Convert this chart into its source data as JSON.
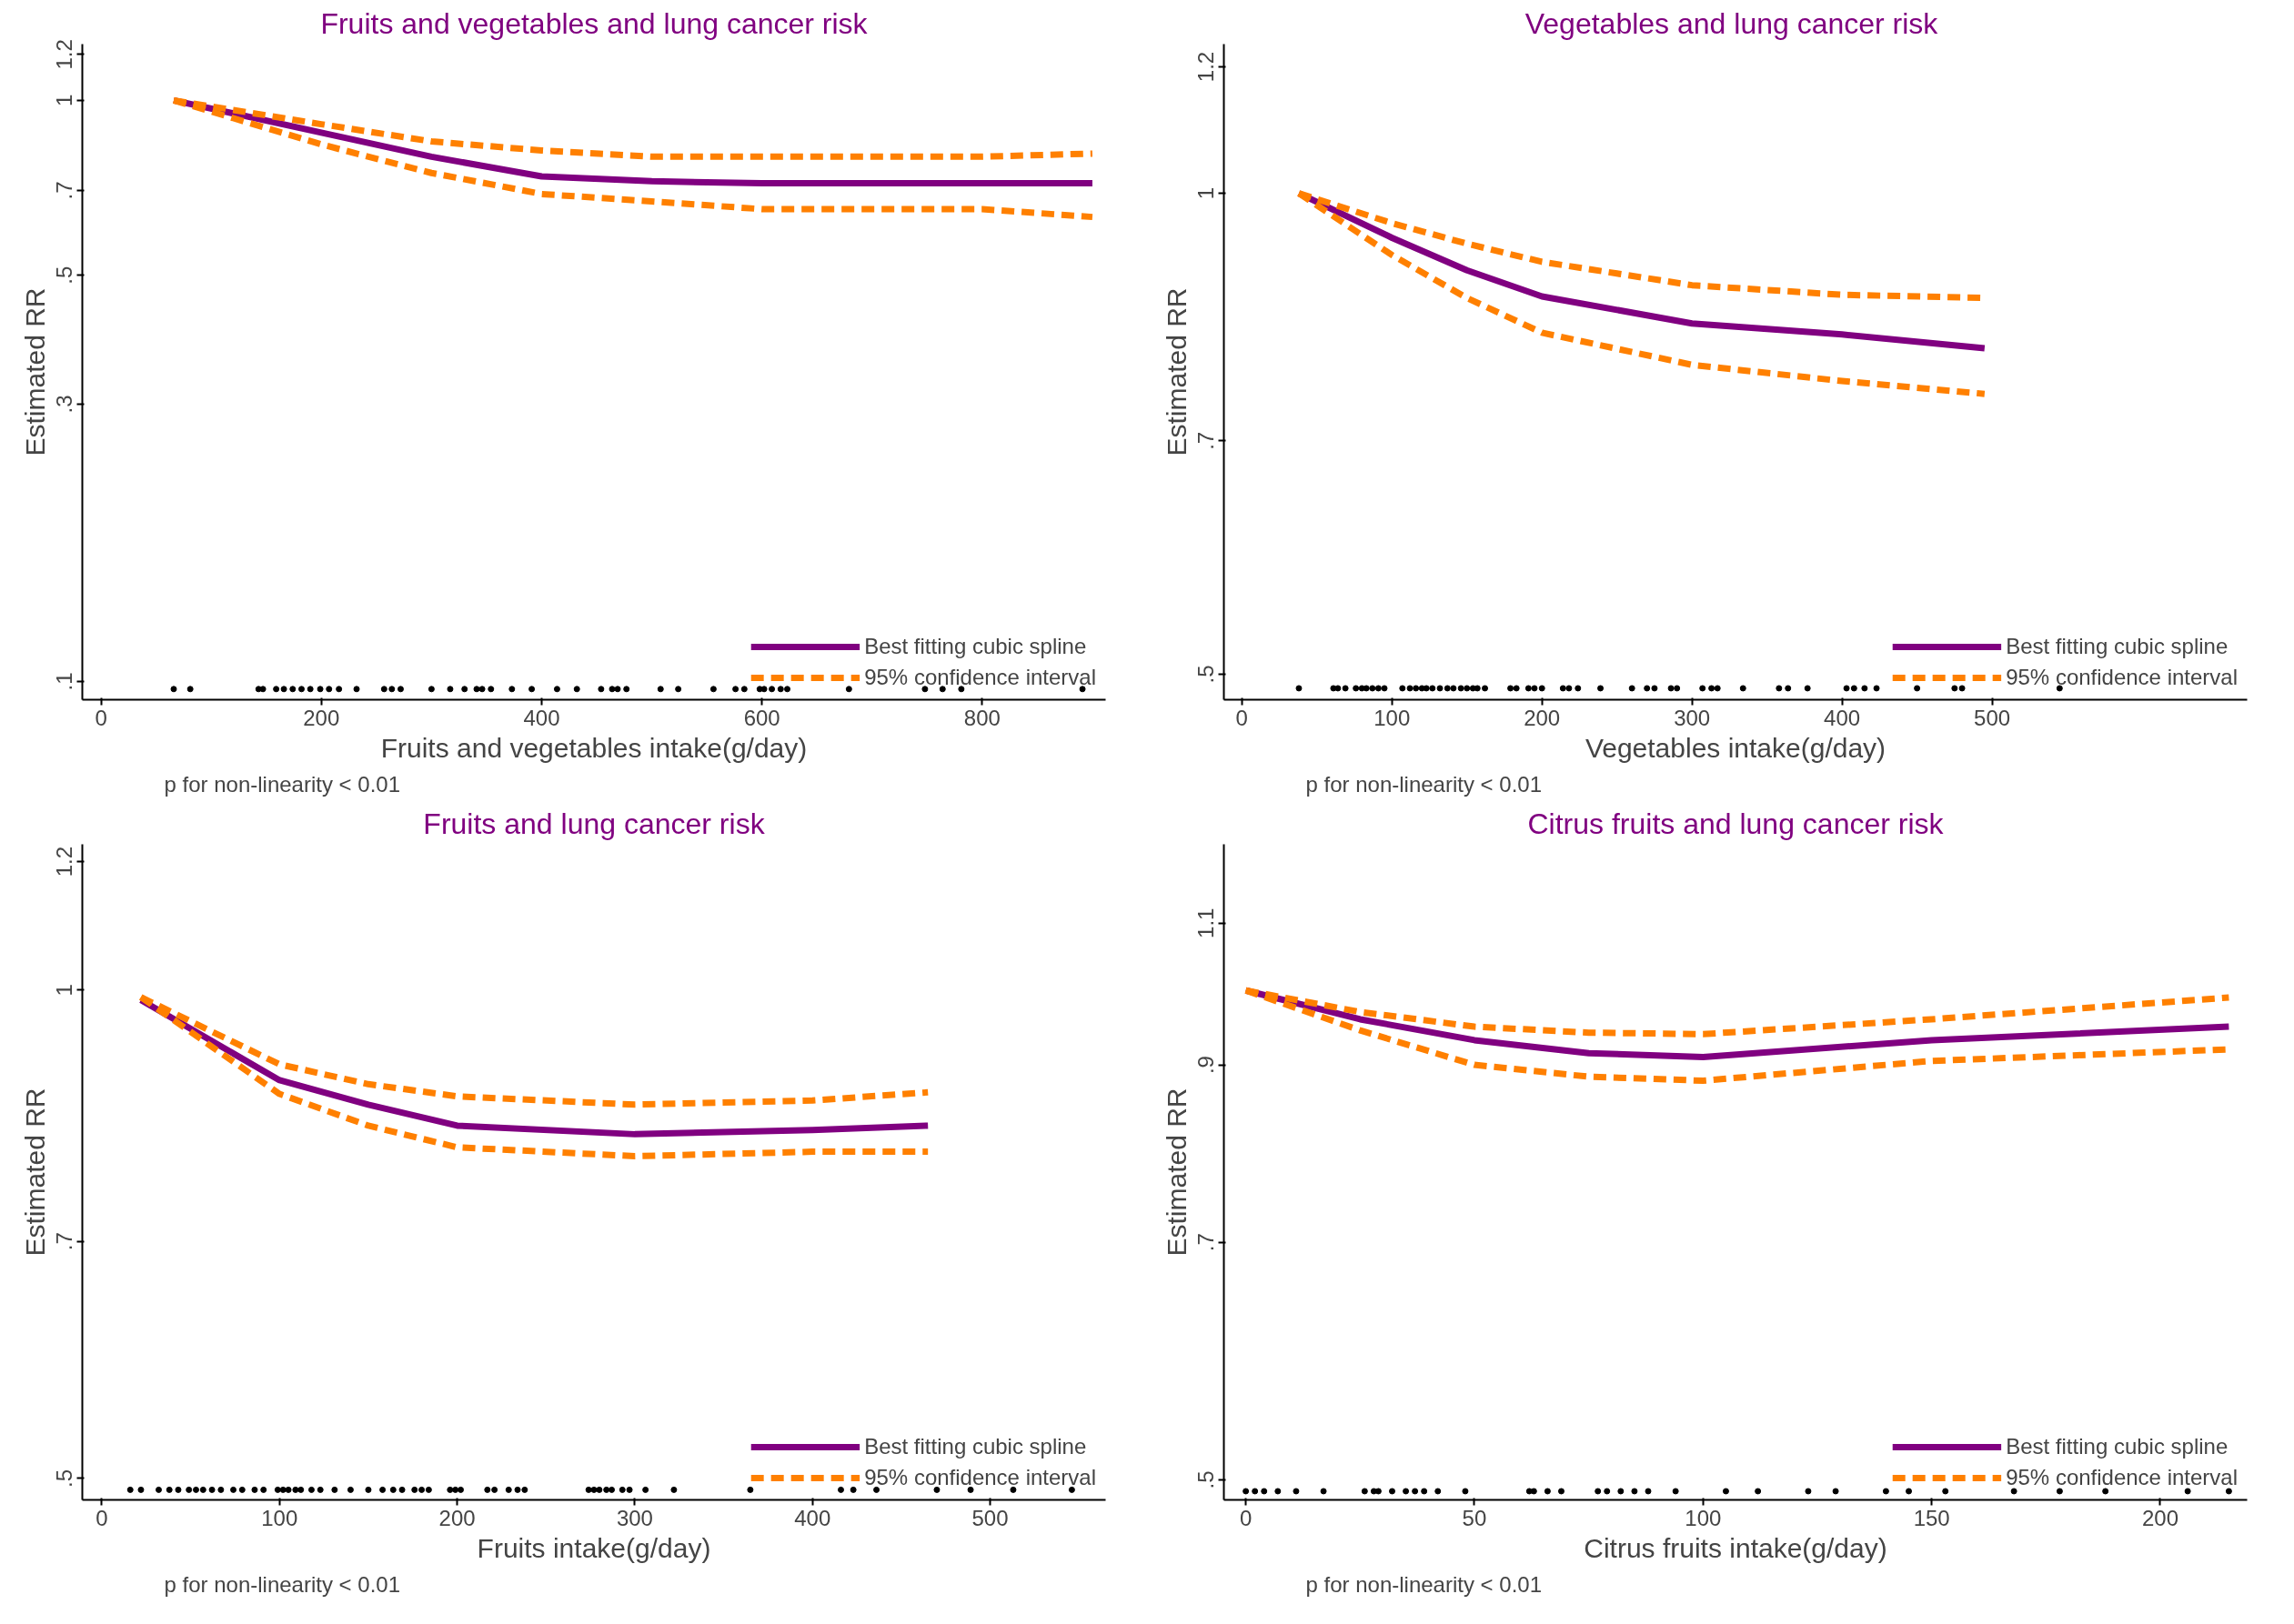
{
  "chart_data": [
    {
      "type": "line",
      "title": "Fruits and vegetables and lung cancer risk",
      "xlabel": "Fruits and vegetables intake(g/day)",
      "ylabel": "Estimated RR",
      "log": "y",
      "legend": "bottom right",
      "line_style": "solid",
      "xlim": [
        -17,
        912
      ],
      "ylim": [
        0.093,
        1.25
      ],
      "xticks": [
        0,
        200,
        400,
        600,
        800
      ],
      "yticks": [
        {
          "value": 0.1,
          "label": ".1"
        },
        {
          "value": 0.3,
          "label": ".3"
        },
        {
          "value": 0.5,
          "label": ".5"
        },
        {
          "value": 0.7,
          "label": ".7"
        },
        1,
        {
          "value": 1.2,
          "label": "1.2"
        }
      ],
      "annotations": [
        "p for non-linearity < 0.01"
      ],
      "series": [
        {
          "name": "Best fitting cubic spline",
          "color": "#800080",
          "x": [
            66,
            200,
            300,
            400,
            500,
            600,
            800,
            900
          ],
          "values": [
            1.0,
            0.88,
            0.8,
            0.74,
            0.726,
            0.72,
            0.72,
            0.72
          ]
        },
        {
          "name": "95% confidence interval",
          "color": "#ff8000",
          "line_style": "dashed",
          "x": [
            66,
            200,
            300,
            400,
            500,
            600,
            800,
            900
          ],
          "values": [
            1.0,
            0.91,
            0.85,
            0.82,
            0.8,
            0.8,
            0.8,
            0.81
          ]
        },
        {
          "color": "#ff8000",
          "line_style": "dashed",
          "x": [
            66,
            200,
            300,
            400,
            500,
            600,
            800,
            900
          ],
          "values": [
            1.0,
            0.84,
            0.75,
            0.69,
            0.67,
            0.65,
            0.65,
            0.63
          ]
        },
        {
          "type": "scatter",
          "color": "#000000",
          "x": [
            66,
            81,
            143,
            147,
            159,
            166,
            174,
            182,
            190,
            199,
            207,
            216,
            232,
            257,
            264,
            272,
            300,
            317,
            330,
            341,
            346,
            354,
            373,
            391,
            414,
            432,
            454,
            464,
            469,
            477,
            508,
            524,
            556,
            576,
            584,
            598,
            602,
            609,
            617,
            623,
            679,
            748,
            764,
            781,
            891
          ],
          "values": [
            0.097,
            0.097,
            0.097,
            0.097,
            0.097,
            0.097,
            0.097,
            0.097,
            0.097,
            0.097,
            0.097,
            0.097,
            0.097,
            0.097,
            0.097,
            0.097,
            0.097,
            0.097,
            0.097,
            0.097,
            0.097,
            0.097,
            0.097,
            0.097,
            0.097,
            0.097,
            0.097,
            0.097,
            0.097,
            0.097,
            0.097,
            0.097,
            0.097,
            0.097,
            0.097,
            0.097,
            0.097,
            0.097,
            0.097,
            0.097,
            0.097,
            0.097,
            0.097,
            0.097,
            0.097
          ]
        }
      ]
    },
    {
      "type": "line",
      "title": "Vegetables and  lung cancer risk",
      "xlabel": "Vegetables intake(g/day)",
      "ylabel": "Estimated RR",
      "log": "y",
      "legend": "bottom right",
      "line_style": "solid",
      "xlim": [
        -12,
        670
      ],
      "ylim": [
        0.482,
        1.24
      ],
      "xticks": [
        0,
        100,
        200,
        300,
        400,
        500
      ],
      "yticks": [
        {
          "value": 0.5,
          "label": ".5"
        },
        {
          "value": 0.7,
          "label": ".7"
        },
        1,
        {
          "value": 1.2,
          "label": "1.2"
        }
      ],
      "annotations": [
        "p for non-linearity < 0.01"
      ],
      "series": [
        {
          "name": "Best fitting cubic spline",
          "color": "#800080",
          "x": [
            38,
            100,
            150,
            200,
            300,
            400,
            495
          ],
          "values": [
            1.0,
            0.938,
            0.895,
            0.862,
            0.829,
            0.816,
            0.8
          ]
        },
        {
          "name": "95% confidence interval",
          "color": "#ff8000",
          "line_style": "dashed",
          "x": [
            38,
            100,
            150,
            200,
            300,
            400,
            495
          ],
          "values": [
            1.0,
            0.958,
            0.93,
            0.906,
            0.876,
            0.864,
            0.86
          ]
        },
        {
          "color": "#ff8000",
          "line_style": "dashed",
          "x": [
            38,
            100,
            150,
            200,
            300,
            400,
            495
          ],
          "values": [
            1.0,
            0.915,
            0.86,
            0.818,
            0.781,
            0.763,
            0.749
          ]
        },
        {
          "type": "scatter",
          "color": "#000000",
          "x": [
            38,
            61,
            64,
            69,
            76,
            80,
            83,
            87,
            91,
            95,
            107,
            112,
            116,
            120,
            123,
            127,
            132,
            137,
            141,
            146,
            150,
            154,
            157,
            162,
            179,
            183,
            191,
            195,
            200,
            214,
            218,
            224,
            239,
            260,
            270,
            275,
            286,
            290,
            307,
            313,
            317,
            334,
            358,
            364,
            377,
            403,
            408,
            415,
            423,
            450,
            475,
            480,
            545
          ],
          "values": [
            0.49,
            0.49,
            0.49,
            0.49,
            0.49,
            0.49,
            0.49,
            0.49,
            0.49,
            0.49,
            0.49,
            0.49,
            0.49,
            0.49,
            0.49,
            0.49,
            0.49,
            0.49,
            0.49,
            0.49,
            0.49,
            0.49,
            0.49,
            0.49,
            0.49,
            0.49,
            0.49,
            0.49,
            0.49,
            0.49,
            0.49,
            0.49,
            0.49,
            0.49,
            0.49,
            0.49,
            0.49,
            0.49,
            0.49,
            0.49,
            0.49,
            0.49,
            0.49,
            0.49,
            0.49,
            0.49,
            0.49,
            0.49,
            0.49,
            0.49,
            0.49,
            0.49,
            0.49
          ]
        }
      ]
    },
    {
      "type": "line",
      "title": "Fruits and lung cancer risk",
      "xlabel": "Fruits intake(g/day)",
      "ylabel": "Estimated RR",
      "log": "y",
      "legend": "bottom right",
      "line_style": "solid",
      "xlim": [
        -11,
        565
      ],
      "ylim": [
        0.485,
        1.23
      ],
      "xticks": [
        0,
        100,
        200,
        300,
        400,
        500
      ],
      "yticks": [
        {
          "value": 0.5,
          "label": ".5"
        },
        {
          "value": 0.7,
          "label": ".7"
        },
        1,
        {
          "value": 1.2,
          "label": "1.2"
        }
      ],
      "annotations": [
        "p for non-linearity < 0.01"
      ],
      "series": [
        {
          "name": "Best fitting cubic spline",
          "color": "#800080",
          "x": [
            22,
            100,
            150,
            200,
            300,
            400,
            465
          ],
          "values": [
            0.986,
            0.88,
            0.85,
            0.825,
            0.815,
            0.82,
            0.825
          ]
        },
        {
          "name": "95% confidence interval",
          "color": "#ff8000",
          "line_style": "dashed",
          "x": [
            22,
            100,
            150,
            200,
            300,
            400,
            465
          ],
          "values": [
            0.99,
            0.9,
            0.875,
            0.86,
            0.85,
            0.855,
            0.865
          ]
        },
        {
          "color": "#ff8000",
          "line_style": "dashed",
          "x": [
            22,
            100,
            150,
            200,
            300,
            400,
            465
          ],
          "values": [
            0.99,
            0.863,
            0.825,
            0.8,
            0.79,
            0.795,
            0.795
          ]
        },
        {
          "type": "scatter",
          "color": "#000000",
          "x": [
            16,
            22,
            32,
            38,
            43,
            49,
            53,
            57,
            62,
            67,
            74,
            79,
            86,
            91,
            99,
            102,
            105,
            109,
            112,
            118,
            123,
            131,
            140,
            150,
            158,
            164,
            169,
            176,
            180,
            184,
            196,
            199,
            202,
            217,
            221,
            229,
            234,
            238,
            274,
            277,
            280,
            284,
            287,
            293,
            297,
            306,
            322,
            365,
            416,
            423,
            436,
            470,
            489,
            513,
            546
          ],
          "values": [
            0.492,
            0.492,
            0.492,
            0.492,
            0.492,
            0.492,
            0.492,
            0.492,
            0.492,
            0.492,
            0.492,
            0.492,
            0.492,
            0.492,
            0.492,
            0.492,
            0.492,
            0.492,
            0.492,
            0.492,
            0.492,
            0.492,
            0.492,
            0.492,
            0.492,
            0.492,
            0.492,
            0.492,
            0.492,
            0.492,
            0.492,
            0.492,
            0.492,
            0.492,
            0.492,
            0.492,
            0.492,
            0.492,
            0.492,
            0.492,
            0.492,
            0.492,
            0.492,
            0.492,
            0.492,
            0.492,
            0.492,
            0.492,
            0.492,
            0.492,
            0.492,
            0.492,
            0.492,
            0.492,
            0.492
          ]
        }
      ]
    },
    {
      "type": "line",
      "title": "Citrus fruits and lung cancer risk",
      "xlabel": "Citrus fruits intake(g/day)",
      "ylabel": "Estimated RR",
      "log": "y",
      "legend": "bottom right",
      "line_style": "solid",
      "xlim": [
        -4.8,
        219
      ],
      "ylim": [
        0.486,
        1.23
      ],
      "xticks": [
        0,
        50,
        100,
        150,
        200
      ],
      "yticks": [
        {
          "value": 0.5,
          "label": ".5"
        },
        {
          "value": 0.7,
          "label": ".7"
        },
        {
          "value": 0.9,
          "label": ".9"
        },
        {
          "value": 1.1,
          "label": "1.1"
        }
      ],
      "annotations": [
        "p for non-linearity < 0.01"
      ],
      "series": [
        {
          "name": "Best fitting cubic spline",
          "color": "#800080",
          "x": [
            0,
            25,
            50,
            75,
            100,
            150,
            215
          ],
          "values": [
            1.0,
            0.96,
            0.932,
            0.915,
            0.91,
            0.932,
            0.95
          ]
        },
        {
          "name": "95% confidence interval",
          "color": "#ff8000",
          "line_style": "dashed",
          "x": [
            0,
            25,
            50,
            75,
            100,
            150,
            215
          ],
          "values": [
            1.0,
            0.97,
            0.95,
            0.942,
            0.94,
            0.96,
            0.99
          ]
        },
        {
          "color": "#ff8000",
          "line_style": "dashed",
          "x": [
            0,
            25,
            50,
            75,
            100,
            150,
            215
          ],
          "values": [
            1.0,
            0.945,
            0.9,
            0.885,
            0.88,
            0.905,
            0.92
          ]
        },
        {
          "type": "scatter",
          "color": "#000000",
          "x": [
            0,
            2,
            4,
            7,
            11,
            17,
            26,
            28,
            29,
            32,
            35,
            37,
            39,
            42,
            48,
            62,
            63,
            66,
            69,
            77,
            79,
            82,
            85,
            88,
            94,
            105,
            112,
            123,
            129,
            140,
            145,
            153,
            168,
            178,
            188,
            206,
            215
          ],
          "values": [
            0.492,
            0.492,
            0.492,
            0.492,
            0.492,
            0.492,
            0.492,
            0.492,
            0.492,
            0.492,
            0.492,
            0.492,
            0.492,
            0.492,
            0.492,
            0.492,
            0.492,
            0.492,
            0.492,
            0.492,
            0.492,
            0.492,
            0.492,
            0.492,
            0.492,
            0.492,
            0.492,
            0.492,
            0.492,
            0.492,
            0.492,
            0.492,
            0.492,
            0.492,
            0.492,
            0.492,
            0.492
          ]
        }
      ]
    }
  ]
}
